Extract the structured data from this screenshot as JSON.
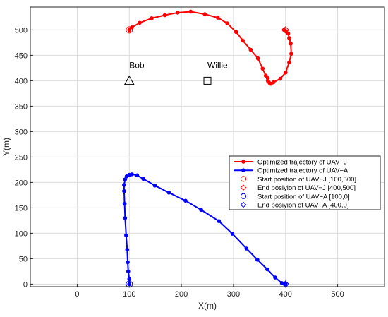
{
  "chart_data": {
    "type": "line",
    "xlabel": "X(m)",
    "ylabel": "Y(m)",
    "xlim": [
      -90,
      590
    ],
    "ylim": [
      -5,
      545
    ],
    "xticks": [
      0,
      100,
      200,
      300,
      400,
      500
    ],
    "yticks": [
      0,
      50,
      100,
      150,
      200,
      250,
      300,
      350,
      400,
      450,
      500
    ],
    "grid": true,
    "legend_position": "middle-right",
    "series": [
      {
        "name": "Optimized trajectory of UAV−J",
        "color": "#ff0000",
        "x": [
          100,
          105,
          120,
          143,
          168,
          193,
          218,
          245,
          270,
          288,
          305,
          318,
          333,
          347,
          356,
          362,
          366,
          366,
          367,
          370,
          372,
          377,
          390,
          400,
          407,
          411,
          410,
          407,
          405,
          400,
          397
        ],
        "y": [
          500,
          505,
          514,
          523,
          529,
          534,
          536,
          531,
          524,
          513,
          496,
          479,
          461,
          444,
          424,
          410,
          400,
          405,
          398,
          395,
          394,
          397,
          404,
          416,
          436,
          453,
          473,
          484,
          493,
          498,
          500
        ]
      },
      {
        "name": "Optimized trajectory of UAV−A",
        "color": "#0000ff",
        "x": [
          100,
          100,
          98,
          97,
          96,
          94,
          92,
          91,
          90,
          90,
          92,
          95,
          100,
          105,
          115,
          127,
          149,
          176,
          208,
          238,
          272,
          298,
          325,
          346,
          365,
          380,
          393,
          399,
          400
        ],
        "y": [
          0,
          10,
          25,
          43,
          68,
          96,
          130,
          158,
          183,
          195,
          206,
          212,
          215,
          216,
          214,
          207,
          194,
          180,
          164,
          146,
          124,
          99,
          70,
          48,
          29,
          13,
          2,
          0,
          0
        ]
      }
    ],
    "markers": [
      {
        "label": "Start position of UAV−J [100,500]",
        "shape": "circle",
        "color": "#ff0000",
        "x": 100,
        "y": 500
      },
      {
        "label": "End posiyion of UAV−J [400,500]",
        "shape": "diamond",
        "color": "#ff0000",
        "x": 400,
        "y": 500
      },
      {
        "label": "Start position of UAV−A [100,0]",
        "shape": "circle",
        "color": "#0000ff",
        "x": 100,
        "y": 0
      },
      {
        "label": "End posiyion of UAV−A [400,0]",
        "shape": "diamond",
        "color": "#0000ff",
        "x": 400,
        "y": 0
      }
    ],
    "annotations": [
      {
        "text": "Bob",
        "shape": "triangle",
        "x": 100,
        "y": 400
      },
      {
        "text": "Willie",
        "shape": "square",
        "x": 250,
        "y": 400
      }
    ]
  }
}
